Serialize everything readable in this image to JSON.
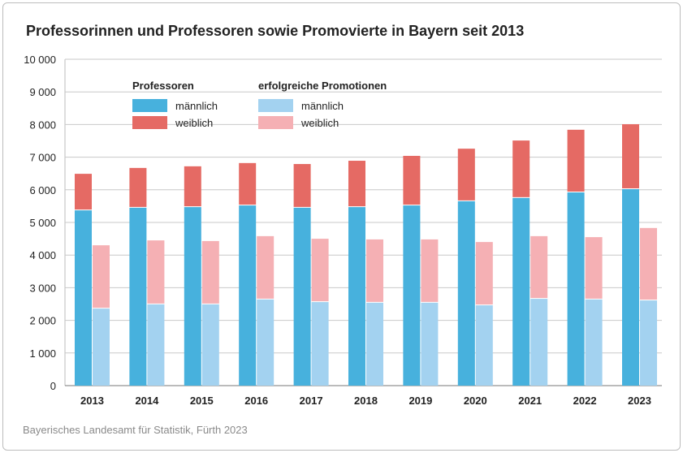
{
  "title": "Professorinnen und Professoren sowie Promovierte in Bayern seit 2013",
  "source": "Bayerisches Landesamt für Statistik, Fürth 2023",
  "colors": {
    "prof_m": "#47b1dd",
    "prof_w": "#e56a64",
    "prom_m": "#a3d2f0",
    "prom_w": "#f5b0b4",
    "grid": "#c8c8c8"
  },
  "legend": {
    "group1_title": "Professoren",
    "group1_m": "männlich",
    "group1_w": "weiblich",
    "group2_title": "erfolgreiche Promotionen",
    "group2_m": "männlich",
    "group2_w": "weiblich"
  },
  "chart_data": {
    "type": "bar",
    "title": "Professorinnen und Professoren sowie Promovierte in Bayern seit 2013",
    "stacked": true,
    "categories": [
      "2013",
      "2014",
      "2015",
      "2016",
      "2017",
      "2018",
      "2019",
      "2020",
      "2021",
      "2022",
      "2023"
    ],
    "ylim": [
      0,
      10000
    ],
    "yticks": [
      0,
      1000,
      2000,
      3000,
      4000,
      5000,
      6000,
      7000,
      8000,
      9000,
      10000
    ],
    "ytick_labels": [
      "0",
      "1 000",
      "2 000",
      "3 000",
      "4 000",
      "5 000",
      "6 000",
      "7 000",
      "8 000",
      "9 000",
      "10 000"
    ],
    "grid": true,
    "legend_position": "top-left",
    "series": [
      {
        "name": "Professoren männlich",
        "stack": "Professoren",
        "values": [
          5370,
          5450,
          5470,
          5520,
          5450,
          5470,
          5520,
          5650,
          5750,
          5920,
          6020
        ]
      },
      {
        "name": "Professoren weiblich",
        "stack": "Professoren",
        "values": [
          1120,
          1220,
          1250,
          1300,
          1340,
          1420,
          1520,
          1610,
          1760,
          1920,
          1990
        ]
      },
      {
        "name": "Promotionen männlich",
        "stack": "Promotionen",
        "values": [
          2360,
          2490,
          2490,
          2640,
          2560,
          2540,
          2540,
          2460,
          2660,
          2640,
          2610
        ]
      },
      {
        "name": "Promotionen weiblich",
        "stack": "Promotionen",
        "values": [
          1940,
          1960,
          1940,
          1940,
          1940,
          1940,
          1940,
          1940,
          1920,
          1910,
          2220
        ]
      }
    ]
  }
}
